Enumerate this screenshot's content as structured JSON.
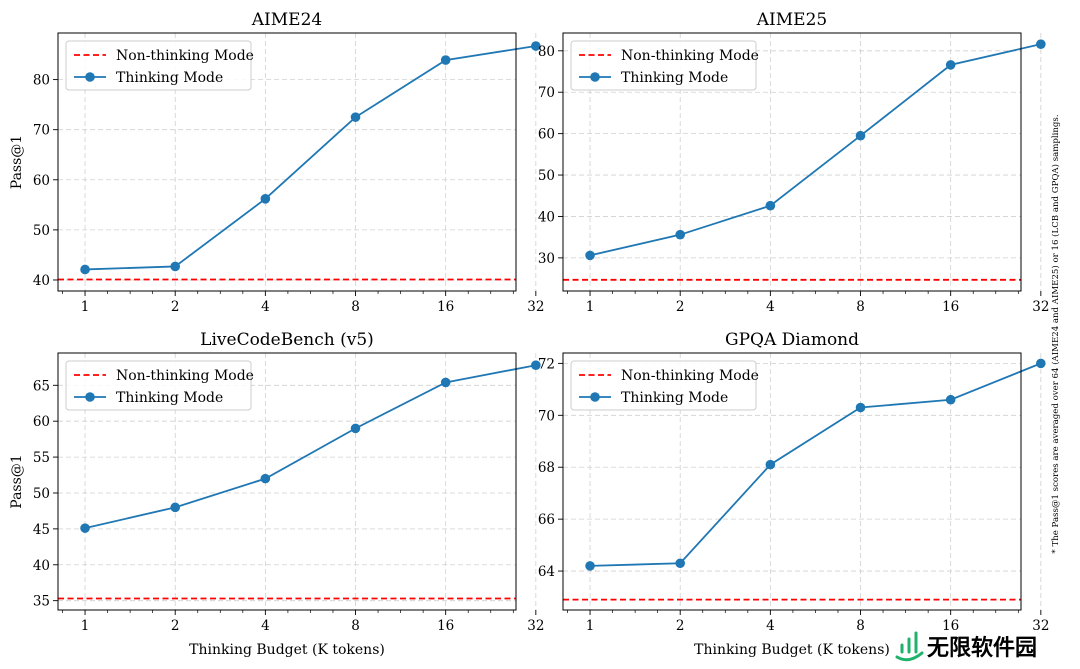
{
  "chart_data": [
    {
      "type": "line",
      "title": "AIME24",
      "xlabel": "",
      "ylabel": "Pass@1",
      "x": [
        "1",
        "2",
        "4",
        "8",
        "16",
        "32"
      ],
      "ylim": [
        37.8,
        89.3
      ],
      "yticks": [
        40,
        50,
        60,
        70,
        80
      ],
      "grid": true,
      "legend_position": "top-left",
      "series": [
        {
          "name": "Non-thinking Mode",
          "style": "dashed",
          "color": "#ff0000",
          "values": [
            40.1,
            40.1,
            40.1,
            40.1,
            40.1,
            40.1
          ]
        },
        {
          "name": "Thinking Mode",
          "style": "solid-marker",
          "color": "#1f77b4",
          "values": [
            42.1,
            42.7,
            56.2,
            72.5,
            83.9,
            86.7
          ]
        }
      ]
    },
    {
      "type": "line",
      "title": "AIME25",
      "xlabel": "",
      "ylabel": "",
      "x": [
        "1",
        "2",
        "4",
        "8",
        "16",
        "32"
      ],
      "ylim": [
        22,
        84.3
      ],
      "yticks": [
        30,
        40,
        50,
        60,
        70,
        80
      ],
      "grid": true,
      "legend_position": "top-left",
      "series": [
        {
          "name": "Non-thinking Mode",
          "style": "dashed",
          "color": "#ff0000",
          "values": [
            24.7,
            24.7,
            24.7,
            24.7,
            24.7,
            24.7
          ]
        },
        {
          "name": "Thinking Mode",
          "style": "solid-marker",
          "color": "#1f77b4",
          "values": [
            30.6,
            35.6,
            42.6,
            59.5,
            76.6,
            81.6
          ]
        }
      ]
    },
    {
      "type": "line",
      "title": "LiveCodeBench (v5)",
      "xlabel": "Thinking Budget (K tokens)",
      "ylabel": "Pass@1",
      "x": [
        "1",
        "2",
        "4",
        "8",
        "16",
        "32"
      ],
      "ylim": [
        33.7,
        69.5
      ],
      "yticks": [
        35,
        40,
        45,
        50,
        55,
        60,
        65
      ],
      "grid": true,
      "legend_position": "top-left",
      "series": [
        {
          "name": "Non-thinking Mode",
          "style": "dashed",
          "color": "#ff0000",
          "values": [
            35.3,
            35.3,
            35.3,
            35.3,
            35.3,
            35.3
          ]
        },
        {
          "name": "Thinking Mode",
          "style": "solid-marker",
          "color": "#1f77b4",
          "values": [
            45.1,
            48.0,
            52.0,
            59.0,
            65.4,
            67.8
          ]
        }
      ]
    },
    {
      "type": "line",
      "title": "GPQA Diamond",
      "xlabel": "Thinking Budget (K tokens)",
      "ylabel": "",
      "x": [
        "1",
        "2",
        "4",
        "8",
        "16",
        "32"
      ],
      "ylim": [
        62.5,
        72.4
      ],
      "yticks": [
        64,
        66,
        68,
        70,
        72
      ],
      "grid": true,
      "legend_position": "top-left",
      "series": [
        {
          "name": "Non-thinking Mode",
          "style": "dashed",
          "color": "#ff0000",
          "values": [
            62.9,
            62.9,
            62.9,
            62.9,
            62.9,
            62.9
          ]
        },
        {
          "name": "Thinking Mode",
          "style": "solid-marker",
          "color": "#1f77b4",
          "values": [
            64.2,
            64.3,
            68.1,
            70.3,
            70.6,
            72.0
          ]
        }
      ]
    }
  ],
  "footnote": "* The Pass@1 scores are averaged over 64 (AIME24 and AIME25) or 16 (LCB and GPQA) samplings.",
  "watermark": {
    "text": "无限软件园",
    "color": "#1fb26b",
    "icon": "bar-chart-logo-icon"
  }
}
